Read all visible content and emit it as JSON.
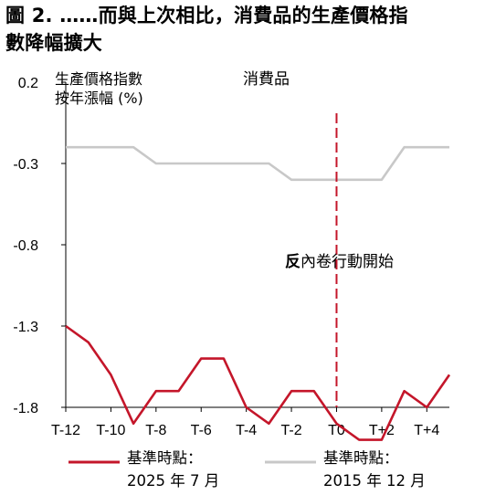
{
  "title_line1": "圖 2. ……而與上次相比，消費品的生產價格指",
  "title_line2": "數降幅擴大",
  "chart_data": {
    "type": "line",
    "ylabel_line1": "生產價格指數",
    "ylabel_line2": "按年漲幅 (%)",
    "ylim": [
      -1.8,
      0.2
    ],
    "yticks": [
      0.2,
      -0.3,
      -0.8,
      -1.3,
      -1.8
    ],
    "ytick_labels": [
      "0.2",
      "-0.3",
      "-0.8",
      "-1.3",
      "-1.8"
    ],
    "xticks": [
      "T-12",
      "T-10",
      "T-8",
      "T-6",
      "T-4",
      "T-2",
      "T0",
      "T+2",
      "T+4"
    ],
    "xtick_values": [
      -12,
      -10,
      -8,
      -6,
      -4,
      -2,
      0,
      2,
      4
    ],
    "xlim": [
      -12,
      5
    ],
    "x": [
      -12,
      -11,
      -10,
      -9,
      -8,
      -7,
      -6,
      -5,
      -4,
      -3,
      -2,
      -1,
      0,
      1,
      2,
      3,
      4,
      5
    ],
    "series_label": "消費品",
    "series": [
      {
        "color": "#c4162a",
        "legend_line1": "基準時點：",
        "legend_line2": "2025 年 7 月",
        "values": [
          -1.3,
          -1.4,
          -1.6,
          -1.9,
          -1.7,
          -1.7,
          -1.5,
          -1.5,
          -1.8,
          -1.9,
          -1.7,
          -1.7,
          -1.9,
          -2.0,
          -2.0,
          -1.7,
          -1.8,
          -1.6
        ]
      },
      {
        "color": "#c8c8c8",
        "legend_line1": "基準時點：",
        "legend_line2": "2015 年 12 月",
        "values": [
          -0.2,
          -0.2,
          -0.2,
          -0.2,
          -0.3,
          -0.3,
          -0.3,
          -0.3,
          -0.3,
          -0.3,
          -0.4,
          -0.4,
          -0.4,
          -0.4,
          -0.4,
          -0.2,
          -0.2,
          -0.2
        ]
      }
    ],
    "vline": {
      "x": 0,
      "color": "#c4162a",
      "style": "dashed"
    },
    "annotation_bold": "反",
    "annotation_rest": "內卷行動開始",
    "gridlines": false,
    "legend_position": "bottom"
  }
}
